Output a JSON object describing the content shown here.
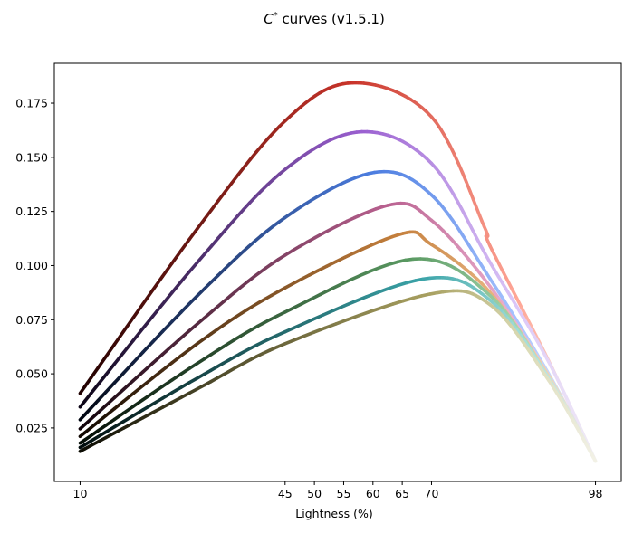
{
  "chart_data": {
    "type": "line",
    "title_main": "C",
    "title_sup": "*",
    "title_rest": " curves (v1.5.1)",
    "xlabel": "Lightness (%)",
    "ylabel": "",
    "xlim": [
      5.6,
      102.4
    ],
    "ylim": [
      0.0003,
      0.1934
    ],
    "xticks": [
      10,
      45,
      50,
      55,
      60,
      65,
      70,
      98
    ],
    "xtick_labels": [
      "10",
      "45",
      "50",
      "55",
      "60",
      "65",
      "70",
      "98"
    ],
    "yticks": [
      0.025,
      0.05,
      0.075,
      0.1,
      0.125,
      0.15,
      0.175
    ],
    "ytick_labels": [
      "0.025",
      "0.050",
      "0.075",
      "0.100",
      "0.125",
      "0.150",
      "0.175"
    ],
    "grid": false,
    "series": [
      {
        "colors": {
          "dark": "#1e0000",
          "mid": "#c9342a",
          "light": "#ffa898",
          "end": "#f3efe6"
        },
        "x": [
          10,
          30,
          45,
          56.6,
          70,
          79,
          80,
          90,
          98
        ],
        "y": [
          0.041,
          0.117,
          0.1668,
          0.1844,
          0.1687,
          0.118,
          0.109,
          0.056,
          0.0097
        ]
      },
      {
        "colors": {
          "dark": "#0a0414",
          "mid": "#9a5fd0",
          "light": "#dcc8f8",
          "end": "#f1edf6"
        },
        "x": [
          10,
          30,
          45,
          58.1,
          70,
          80,
          90,
          98
        ],
        "y": [
          0.0347,
          0.1014,
          0.1444,
          0.1618,
          0.1472,
          0.1014,
          0.0555,
          0.0097
        ]
      },
      {
        "colors": {
          "dark": "#00040e",
          "mid": "#4c7de0",
          "light": "#a8c4ff",
          "end": "#eef1f6"
        },
        "x": [
          10,
          30,
          45,
          60.2,
          70,
          80,
          90,
          98
        ],
        "y": [
          0.0288,
          0.086,
          0.1222,
          0.143,
          0.1326,
          0.0939,
          0.05,
          0.0097
        ]
      },
      {
        "colors": {
          "dark": "#0e0208",
          "mid": "#b8608f",
          "light": "#f0b4d2",
          "end": "#f4eef0"
        },
        "x": [
          10,
          30,
          45,
          62.5,
          70,
          80,
          90,
          98
        ],
        "y": [
          0.0246,
          0.073,
          0.1048,
          0.1278,
          0.1209,
          0.0903,
          0.049,
          0.0097
        ]
      },
      {
        "colors": {
          "dark": "#0e0600",
          "mid": "#c47f3c",
          "light": "#f0c090",
          "end": "#f4f0e8"
        },
        "x": [
          10,
          30,
          45,
          64.3,
          70,
          80,
          90,
          98
        ],
        "y": [
          0.0211,
          0.0639,
          0.0897,
          0.1142,
          0.1097,
          0.0876,
          0.049,
          0.0097
        ]
      },
      {
        "colors": {
          "dark": "#020a04",
          "mid": "#5a9a62",
          "light": "#a8d8b0",
          "end": "#eef2ea"
        },
        "x": [
          10,
          30,
          45,
          66.9,
          80,
          90,
          98
        ],
        "y": [
          0.018,
          0.0548,
          0.0785,
          0.103,
          0.0861,
          0.048,
          0.0097
        ]
      },
      {
        "colors": {
          "dark": "#000a0a",
          "mid": "#3aa3a8",
          "light": "#a0dcd8",
          "end": "#eef2ee"
        },
        "x": [
          10,
          30,
          45,
          68.6,
          80,
          90,
          98
        ],
        "y": [
          0.016,
          0.048,
          0.0694,
          0.0938,
          0.084,
          0.048,
          0.0097
        ]
      },
      {
        "colors": {
          "dark": "#0a0a02",
          "mid": "#a8a060",
          "light": "#d8d8b0",
          "end": "#f2f1e6"
        },
        "x": [
          10,
          30,
          45,
          69.7,
          80,
          90,
          98
        ],
        "y": [
          0.0142,
          0.043,
          0.0639,
          0.0868,
          0.0819,
          0.047,
          0.0097
        ]
      }
    ]
  }
}
